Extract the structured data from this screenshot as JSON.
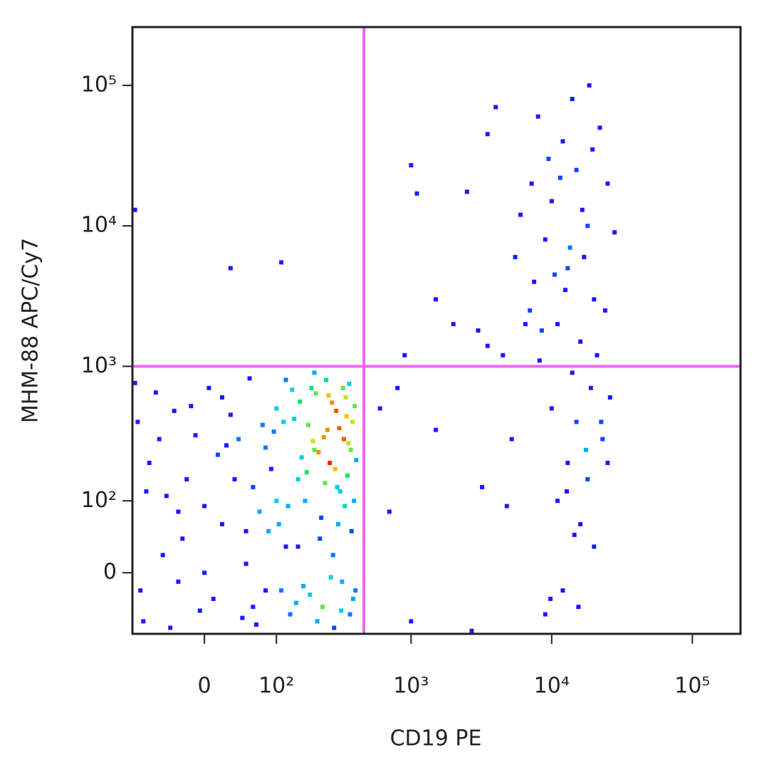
{
  "chart_data": {
    "type": "scatter",
    "xlabel": "CD19 PE",
    "ylabel": "MHM-88 APC/Cy7",
    "xscale": "biexponential",
    "yscale": "biexponential",
    "xlim": [
      -100,
      220000
    ],
    "ylim": [
      -80,
      260000
    ],
    "xticks": [
      0,
      {
        "value": 100,
        "label": "10²"
      },
      {
        "value": 1000,
        "label": "10³"
      },
      {
        "value": 10000,
        "label": "10⁴"
      },
      {
        "value": 100000,
        "label": "10⁵"
      }
    ],
    "yticks": [
      0,
      {
        "value": 100,
        "label": "10²"
      },
      {
        "value": 1000,
        "label": "10³"
      },
      {
        "value": 10000,
        "label": "10⁴"
      },
      {
        "value": 100000,
        "label": "10⁵"
      }
    ],
    "color": "#1a1aff",
    "density_coloring": true,
    "gates": {
      "x": 460,
      "y": 1000,
      "color": "#ee66ee"
    },
    "x": [
      -80,
      -50,
      -20,
      10,
      40,
      70,
      100,
      130,
      160,
      190,
      220,
      250,
      280,
      310,
      340,
      370,
      400,
      -90,
      -60,
      -30,
      0,
      30,
      60,
      90,
      120,
      150,
      180,
      210,
      240,
      270,
      300,
      330,
      360,
      390,
      -70,
      -40,
      -10,
      20,
      50,
      80,
      110,
      140,
      170,
      200,
      230,
      260,
      290,
      320,
      350,
      380,
      -85,
      -45,
      -15,
      15,
      45,
      75,
      105,
      135,
      165,
      195,
      225,
      255,
      285,
      315,
      345,
      375,
      405,
      -95,
      -55,
      -25,
      5,
      35,
      65,
      95,
      125,
      155,
      185,
      215,
      245,
      275,
      305,
      335,
      365,
      395,
      -75,
      -35,
      -5,
      25,
      55,
      85,
      115,
      145,
      175,
      205,
      235,
      265,
      295,
      325,
      355,
      385,
      0,
      50,
      100,
      150,
      200,
      -30,
      80,
      120,
      60,
      20,
      8000,
      12000,
      15000,
      10000,
      18000,
      9000,
      13000,
      20000,
      7000,
      11000,
      16000,
      25000,
      6000,
      14000,
      22000,
      9500,
      17000,
      12500,
      8500,
      19000,
      10000,
      15000,
      23000,
      13000,
      18000,
      11000,
      16000,
      20000,
      12000,
      9000,
      26000,
      14000,
      21000,
      7500,
      28000,
      16500,
      11500,
      19500,
      13500,
      10500,
      24000,
      8200,
      17500,
      12800,
      15500,
      4000,
      3500,
      5500,
      3000,
      4500,
      5200,
      3200,
      4800,
      6500,
      7200,
      18500,
      22500,
      9800,
      25000,
      14500,
      -95,
      30,
      110,
      1000,
      1100,
      2500,
      1500,
      900,
      800,
      1500,
      600,
      700,
      1000,
      2000,
      2700,
      3500
    ],
    "values": [
      -60,
      20,
      150,
      -30,
      300,
      80,
      500,
      -50,
      220,
      700,
      40,
      350,
      -70,
      120,
      600,
      250,
      -20,
      400,
      650,
      -10,
      90,
      450,
      -40,
      180,
      800,
      30,
      380,
      -60,
      140,
      550,
      60,
      300,
      750,
      100,
      200,
      -70,
      320,
      600,
      10,
      260,
      -20,
      420,
      100,
      900,
      -40,
      200,
      480,
      -10,
      160,
      400,
      -20,
      110,
      520,
      230,
      -55,
      380,
      60,
      680,
      -15,
      290,
      70,
      620,
      180,
      -45,
      440,
      50,
      210,
      760,
      300,
      40,
      700,
      150,
      -65,
      340,
      90,
      560,
      -25,
      240,
      800,
      20,
      360,
      90,
      -50,
      520,
      120,
      480,
      -45,
      270,
      820,
      50,
      400,
      -35,
      170,
      640,
      310,
      -5,
      130,
      700,
      280,
      -30,
      0,
      50,
      100,
      150,
      250,
      80,
      -20,
      30,
      130,
      60,
      60000,
      40000,
      25000,
      15000,
      10000,
      8000,
      5000,
      3000,
      2500,
      2000,
      1500,
      20000,
      12000,
      80000,
      50000,
      30000,
      6000,
      3500,
      1800,
      700,
      500,
      400,
      300,
      200,
      150,
      100,
      60,
      30,
      -20,
      -50,
      600,
      900,
      1200,
      4000,
      9000,
      13000,
      22000,
      35000,
      7000,
      4500,
      2500,
      1100,
      250,
      120,
      -40,
      70000,
      45000,
      6000,
      1800,
      1200,
      300,
      130,
      90,
      2000,
      20000,
      100000,
      400,
      -30,
      200,
      45,
      13000,
      5000,
      5500,
      27000,
      17000,
      17500,
      3000,
      1200,
      700,
      350,
      500,
      80,
      -60,
      2000,
      -75,
      1400
    ]
  }
}
